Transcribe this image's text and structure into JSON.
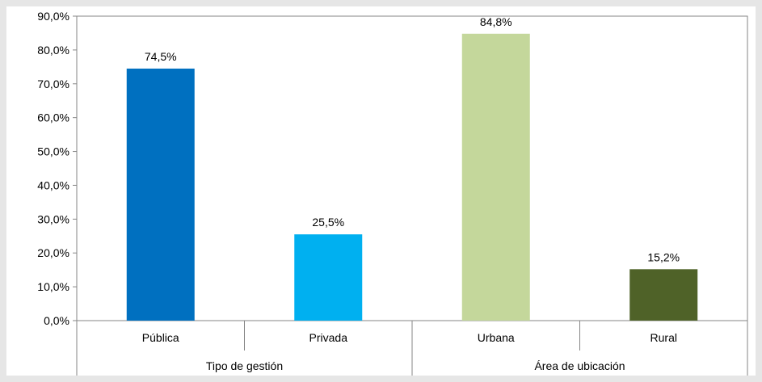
{
  "chart_data": {
    "type": "bar",
    "title": "",
    "xlabel": "",
    "ylabel": "",
    "ylim": [
      0,
      90
    ],
    "y_ticks": [
      "0,0%",
      "10,0%",
      "20,0%",
      "30,0%",
      "40,0%",
      "50,0%",
      "60,0%",
      "70,0%",
      "80,0%",
      "90,0%"
    ],
    "grid": false,
    "legend": "none",
    "categories": [
      "Pública",
      "Privada",
      "Urbana",
      "Rural"
    ],
    "values": [
      74.5,
      25.5,
      84.8,
      15.2
    ],
    "data_labels": [
      "74,5%",
      "25,5%",
      "84,8%",
      "15,2%"
    ],
    "colors": [
      "#0070c0",
      "#00b0f0",
      "#c4d79b",
      "#4f6228"
    ],
    "groups": [
      {
        "label": "Tipo de gestión",
        "categories": [
          "Pública",
          "Privada"
        ]
      },
      {
        "label": "Área de ubicación",
        "categories": [
          "Urbana",
          "Rural"
        ]
      }
    ]
  }
}
